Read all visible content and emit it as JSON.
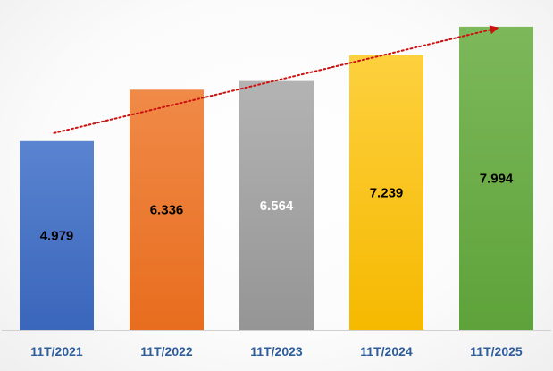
{
  "chart_data": {
    "type": "bar",
    "categories": [
      "11T/2021",
      "11T/2022",
      "11T/2023",
      "11T/2024",
      "11T/2025"
    ],
    "values": [
      4.979,
      6.336,
      6.564,
      7.239,
      7.994
    ],
    "value_labels": [
      "4.979",
      "6.336",
      "6.564",
      "7.239",
      "7.994"
    ],
    "ylim": [
      0,
      8.7
    ],
    "grid": false,
    "legend": "none",
    "trend_arrow": true,
    "colors": {
      "bars": [
        [
          "#5a84d0",
          "#3a66bb"
        ],
        [
          "#f08a48",
          "#e86d1e"
        ],
        [
          "#b3b3b3",
          "#959595"
        ],
        [
          "#fdd03e",
          "#f6b900"
        ],
        [
          "#7db85a",
          "#5ea23a"
        ]
      ],
      "label_colors": [
        "#000000",
        "#000000",
        "#ffffff",
        "#000000",
        "#000000"
      ],
      "trend": "#cc1111",
      "axis": "#d0d0d0",
      "tick_text": "#2e5e9a"
    }
  }
}
